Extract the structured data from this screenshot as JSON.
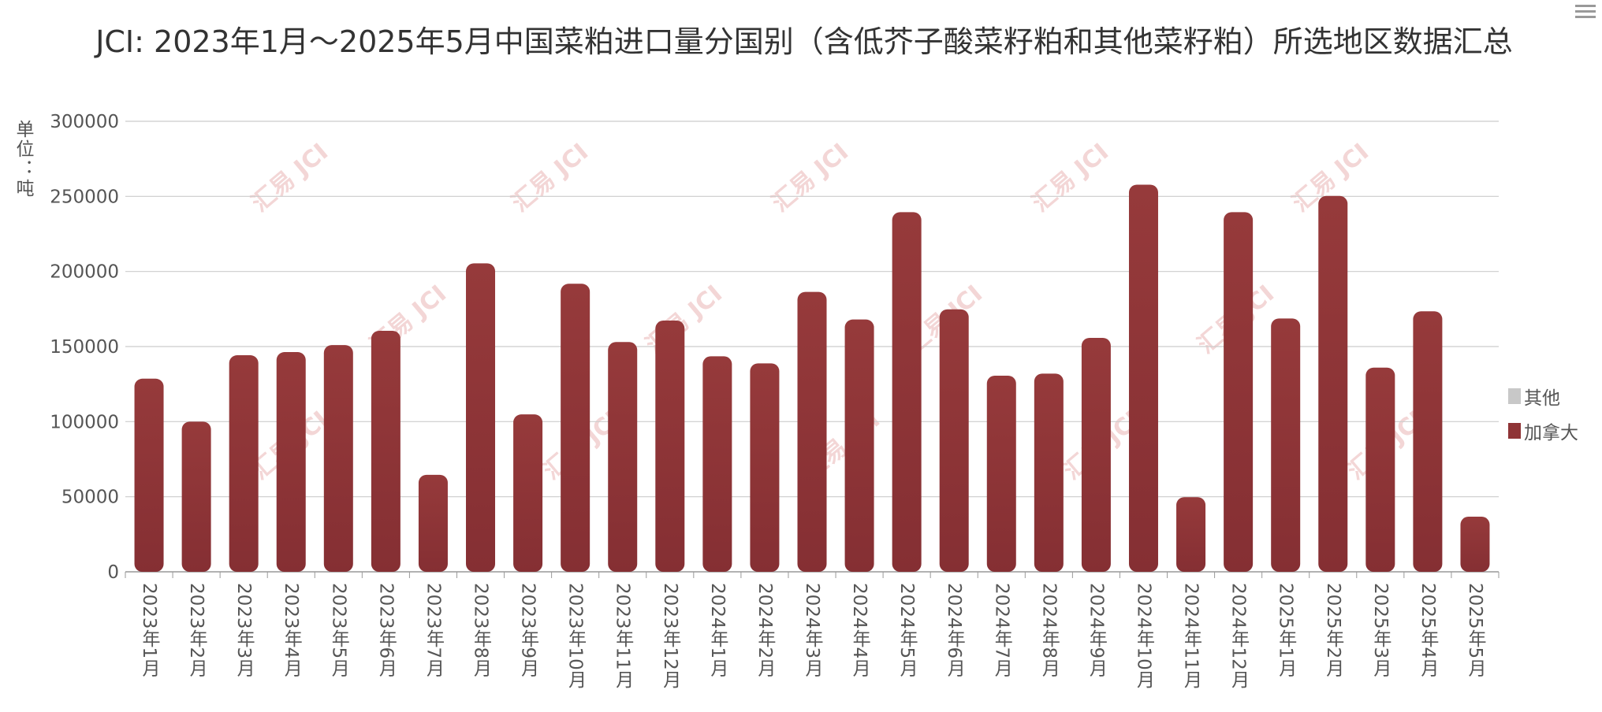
{
  "chart_data": {
    "type": "bar",
    "title": "JCI: 2023年1月～2025年5月中国菜粕进口量分国别（含低芥子酸菜籽粕和其他菜籽粕）所选地区数据汇总",
    "ylabel": "单位：吨",
    "ylim": [
      0,
      300000
    ],
    "yticks": [
      "0",
      "50000",
      "100000",
      "150000",
      "200000",
      "250000",
      "300000"
    ],
    "grid": true,
    "legend_position": "right",
    "categories": [
      "2023年1月",
      "2023年2月",
      "2023年3月",
      "2023年4月",
      "2023年5月",
      "2023年6月",
      "2023年7月",
      "2023年8月",
      "2023年9月",
      "2023年10月",
      "2023年11月",
      "2023年12月",
      "2024年1月",
      "2024年2月",
      "2024年3月",
      "2024年4月",
      "2024年5月",
      "2024年6月",
      "2024年7月",
      "2024年8月",
      "2024年9月",
      "2024年10月",
      "2024年11月",
      "2024年12月",
      "2025年1月",
      "2025年2月",
      "2025年3月",
      "2025年4月",
      "2025年5月"
    ],
    "series": [
      {
        "name": "其他",
        "color": "#c8c8c8",
        "values": [
          0,
          0,
          0,
          0,
          0,
          0,
          0,
          0,
          0,
          0,
          0,
          0,
          0,
          0,
          0,
          0,
          0,
          0,
          0,
          0,
          0,
          0,
          0,
          0,
          0,
          0,
          0,
          0,
          0
        ]
      },
      {
        "name": "加拿大",
        "color": "#8f3436",
        "values": [
          128600,
          100000,
          144200,
          146300,
          151000,
          160500,
          64600,
          205400,
          104800,
          191800,
          153000,
          167300,
          143500,
          138800,
          186400,
          168000,
          239500,
          174800,
          130600,
          132000,
          155800,
          257800,
          49700,
          239500,
          168700,
          250300,
          136000,
          173500,
          36700
        ]
      }
    ]
  },
  "watermark": "汇易 JCI",
  "menu_icon": "hamburger-menu-icon"
}
